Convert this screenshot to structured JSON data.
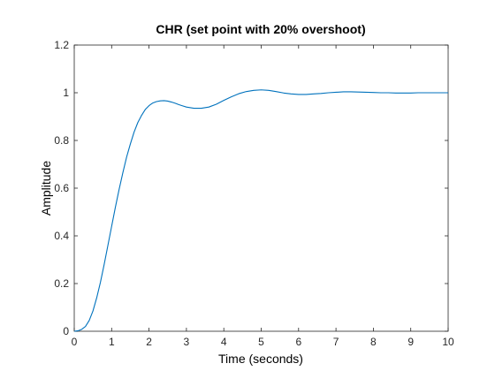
{
  "chart_data": {
    "type": "line",
    "title": "CHR (set point with 20% overshoot)",
    "xlabel": "Time (seconds)",
    "ylabel": "Amplitude",
    "xlim": [
      0,
      10
    ],
    "ylim": [
      0,
      1.2
    ],
    "x_ticks": [
      "0",
      "1",
      "2",
      "3",
      "4",
      "5",
      "6",
      "7",
      "8",
      "9",
      "10"
    ],
    "y_ticks": [
      "0",
      "0.2",
      "0.4",
      "0.6",
      "0.8",
      "1",
      "1.2"
    ],
    "grid": false,
    "legend": null,
    "colors": {
      "line": "#0072bd",
      "axes": "#262626",
      "box": "#262626",
      "text": "#262626"
    },
    "series": [
      {
        "x": [
          0,
          0.1,
          0.2,
          0.3,
          0.4,
          0.5,
          0.6,
          0.7,
          0.8,
          0.9,
          1.0,
          1.1,
          1.2,
          1.3,
          1.4,
          1.5,
          1.6,
          1.7,
          1.8,
          1.9,
          2.0,
          2.1,
          2.2,
          2.3,
          2.4,
          2.5,
          2.6,
          2.7,
          2.8,
          2.9,
          3.0,
          3.2,
          3.4,
          3.6,
          3.8,
          4.0,
          4.2,
          4.4,
          4.6,
          4.8,
          5.0,
          5.2,
          5.4,
          5.6,
          5.8,
          6.0,
          6.2,
          6.4,
          6.6,
          6.8,
          7.0,
          7.2,
          7.4,
          7.6,
          7.8,
          8.0,
          8.2,
          8.4,
          8.6,
          8.8,
          9.0,
          9.2,
          9.4,
          9.6,
          9.8,
          10.0
        ],
        "y": [
          0,
          0.002,
          0.008,
          0.02,
          0.045,
          0.085,
          0.14,
          0.205,
          0.28,
          0.36,
          0.44,
          0.52,
          0.595,
          0.665,
          0.73,
          0.785,
          0.835,
          0.875,
          0.905,
          0.93,
          0.946,
          0.957,
          0.963,
          0.966,
          0.967,
          0.965,
          0.961,
          0.956,
          0.95,
          0.945,
          0.94,
          0.935,
          0.935,
          0.94,
          0.952,
          0.968,
          0.983,
          0.996,
          1.005,
          1.01,
          1.012,
          1.01,
          1.005,
          0.999,
          0.995,
          0.993,
          0.993,
          0.995,
          0.997,
          1.0,
          1.002,
          1.004,
          1.004,
          1.003,
          1.002,
          1.001,
          1.0,
          1.0,
          0.999,
          0.999,
          0.999,
          1.0,
          1.0,
          1.0,
          1.0,
          1.0
        ]
      }
    ]
  }
}
